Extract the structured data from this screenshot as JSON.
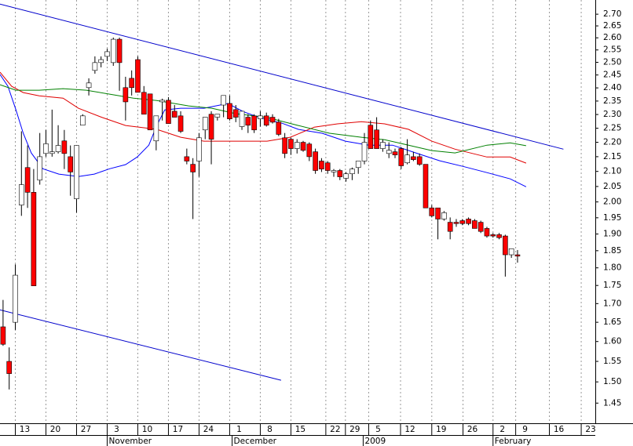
{
  "chart_data": {
    "type": "candlestick",
    "log_scale": true,
    "grid": "x",
    "up_color": "#ffffff",
    "down_color": "#ff0000",
    "xlim": [
      -0.5,
      96.7
    ],
    "ylim": [
      1.404,
      2.762
    ],
    "yticks": [
      1.45,
      {
        "value": 1.5,
        "label": "1.50"
      },
      1.55,
      {
        "value": 1.6,
        "label": "1.60"
      },
      1.65,
      {
        "value": 1.7,
        "label": "1.70"
      },
      1.75,
      {
        "value": 1.8,
        "label": "1.80"
      },
      1.85,
      {
        "value": 1.9,
        "label": "1.90"
      },
      1.95,
      {
        "value": 2,
        "label": "2.00"
      },
      2.05,
      {
        "value": 2.1,
        "label": "2.10"
      },
      2.15,
      {
        "value": 2.2,
        "label": "2.20"
      },
      2.25,
      {
        "value": 2.3,
        "label": "2.30"
      },
      2.35,
      {
        "value": 2.4,
        "label": "2.40"
      },
      2.45,
      {
        "value": 2.5,
        "label": "2.50"
      },
      2.55,
      {
        "value": 2.6,
        "label": "2.60"
      },
      2.65,
      {
        "value": 2.7,
        "label": "2.70"
      }
    ],
    "xticks": [
      {
        "value": 2,
        "label": "13"
      },
      {
        "value": 7,
        "label": "20"
      },
      {
        "value": 12,
        "label": "27"
      },
      {
        "value": 17,
        "label": "3"
      },
      {
        "value": 22,
        "label": "10"
      },
      {
        "value": 27,
        "label": "17"
      },
      {
        "value": 32,
        "label": "24"
      },
      {
        "value": 37,
        "label": "1"
      },
      {
        "value": 42,
        "label": "8"
      },
      {
        "value": 47,
        "label": "15"
      },
      {
        "value": 52.7,
        "label": "22"
      },
      {
        "value": 55.9,
        "label": "29"
      },
      {
        "value": 59.7,
        "label": "5"
      },
      {
        "value": 64.9,
        "label": "12"
      },
      {
        "value": 70,
        "label": "19"
      },
      {
        "value": 75.1,
        "label": "26"
      },
      {
        "value": 80,
        "label": "2"
      },
      {
        "value": 83.7,
        "label": "9"
      },
      {
        "value": 89.2,
        "label": "16"
      },
      {
        "value": 94.4,
        "label": "23"
      }
    ],
    "month_ticks": [
      {
        "value": 17,
        "label": "November"
      },
      {
        "value": 37.4,
        "label": "December"
      },
      {
        "value": 58.8,
        "label": "2009"
      },
      {
        "value": 80,
        "label": "February"
      }
    ],
    "candles": {
      "x": [
        0,
        1,
        2,
        3,
        4,
        5,
        6,
        7,
        8,
        9,
        10,
        11,
        12,
        13,
        14,
        15,
        16,
        17,
        18,
        19,
        20,
        21,
        22,
        23,
        24,
        25,
        26,
        27,
        28,
        29,
        30,
        31,
        32,
        33,
        34,
        35,
        36,
        37,
        38,
        39,
        40,
        41,
        42,
        43,
        44,
        45,
        46,
        47,
        48,
        49,
        50,
        51,
        52,
        53,
        54,
        55,
        56,
        57,
        58,
        59,
        60,
        61,
        62,
        63,
        64,
        65,
        66,
        67,
        68,
        69,
        70,
        71,
        72,
        73,
        74,
        75,
        76,
        77,
        78,
        79,
        80,
        81,
        82,
        83,
        84
      ],
      "open": [
        1.638,
        1.55,
        1.65,
        1.99,
        2.113,
        2.031,
        2.071,
        2.161,
        2.161,
        2.167,
        2.205,
        2.15,
        2.01,
        2.261,
        2.401,
        2.468,
        2.499,
        2.524,
        2.499,
        2.594,
        2.401,
        2.437,
        2.511,
        2.383,
        2.377,
        2.205,
        2.347,
        2.353,
        2.312,
        2.295,
        2.15,
        2.124,
        2.135,
        2.244,
        2.301,
        2.29,
        2.335,
        2.341,
        2.318,
        2.256,
        2.29,
        2.295,
        2.284,
        2.295,
        2.29,
        2.272,
        2.216,
        2.211,
        2.178,
        2.2,
        2.194,
        2.167,
        2.135,
        2.129,
        2.098,
        2.103,
        2.077,
        2.092,
        2.113,
        2.135,
        2.261,
        2.244,
        2.178,
        2.161,
        2.167,
        2.178,
        2.129,
        2.15,
        2.15,
        2.124,
        1.981,
        1.981,
        1.946,
        1.936,
        1.936,
        1.941,
        1.946,
        1.941,
        1.936,
        1.917,
        1.898,
        1.898,
        1.894,
        1.838,
        1.838
      ],
      "high": [
        1.71,
        1.585,
        1.81,
        2.239,
        2.189,
        2.108,
        2.233,
        2.244,
        2.318,
        2.261,
        2.244,
        2.189,
        2.189,
        2.301,
        2.437,
        2.524,
        2.524,
        2.555,
        2.601,
        2.601,
        2.443,
        2.468,
        2.524,
        2.407,
        2.377,
        2.295,
        2.359,
        2.365,
        2.335,
        2.312,
        2.178,
        2.145,
        2.233,
        2.29,
        2.312,
        2.301,
        2.365,
        2.371,
        2.335,
        2.312,
        2.301,
        2.301,
        2.312,
        2.307,
        2.301,
        2.284,
        2.233,
        2.216,
        2.211,
        2.205,
        2.2,
        2.178,
        2.145,
        2.135,
        2.108,
        2.108,
        2.098,
        2.113,
        2.135,
        2.233,
        2.278,
        2.29,
        2.211,
        2.2,
        2.178,
        2.183,
        2.211,
        2.167,
        2.161,
        2.124,
        1.99,
        1.981,
        1.971,
        1.951,
        1.946,
        1.946,
        1.951,
        1.946,
        1.941,
        1.922,
        1.903,
        1.903,
        1.898,
        1.852,
        1.852
      ],
      "low": [
        1.589,
        1.482,
        1.63,
        1.956,
        1.981,
        1.749,
        2.056,
        2.15,
        2.15,
        2.161,
        2.108,
        2.02,
        1.966,
        2.261,
        2.371,
        2.455,
        2.48,
        2.505,
        2.486,
        2.389,
        2.278,
        2.371,
        2.383,
        2.301,
        2.244,
        2.172,
        2.278,
        2.267,
        2.29,
        2.233,
        2.124,
        1.946,
        2.082,
        2.211,
        2.124,
        2.278,
        2.29,
        2.278,
        2.272,
        2.244,
        2.233,
        2.233,
        2.256,
        2.256,
        2.267,
        2.222,
        2.145,
        2.156,
        2.161,
        2.167,
        2.135,
        2.092,
        2.098,
        2.092,
        2.082,
        2.071,
        2.066,
        2.071,
        2.092,
        2.124,
        2.178,
        2.178,
        2.167,
        2.145,
        2.145,
        2.108,
        2.124,
        2.135,
        2.119,
        1.981,
        1.951,
        1.884,
        1.941,
        1.884,
        1.922,
        1.927,
        1.927,
        1.917,
        1.903,
        1.889,
        1.889,
        1.884,
        1.775,
        1.829,
        1.815
      ],
      "close": [
        1.593,
        1.52,
        1.779,
        2.056,
        2.031,
        1.749,
        2.15,
        2.195,
        2.167,
        2.189,
        2.161,
        2.098,
        2.189,
        2.295,
        2.419,
        2.499,
        2.511,
        2.543,
        2.594,
        2.499,
        2.347,
        2.401,
        2.383,
        2.301,
        2.244,
        2.295,
        2.353,
        2.267,
        2.29,
        2.239,
        2.135,
        2.098,
        2.216,
        2.29,
        2.211,
        2.301,
        2.371,
        2.284,
        2.29,
        2.312,
        2.261,
        2.244,
        2.295,
        2.261,
        2.272,
        2.228,
        2.161,
        2.178,
        2.2,
        2.172,
        2.15,
        2.103,
        2.108,
        2.103,
        2.103,
        2.082,
        2.092,
        2.108,
        2.135,
        2.2,
        2.178,
        2.178,
        2.2,
        2.172,
        2.156,
        2.119,
        2.156,
        2.14,
        2.124,
        1.981,
        1.956,
        1.946,
        1.966,
        1.908,
        1.932,
        1.932,
        1.932,
        1.917,
        1.908,
        1.894,
        1.894,
        1.889,
        1.838,
        1.856,
        1.834
      ]
    },
    "lines": [
      {
        "color": "#0000ff",
        "x": [
          -0.5,
          0.8,
          2.1,
          3.3,
          4.6,
          6.5,
          9.1,
          12.3,
          14.9,
          17.4,
          20,
          21.9,
          23.8,
          25.1,
          26.4,
          29,
          32.8,
          36.7,
          39.2,
          41.8,
          45.6,
          48.2,
          52.1,
          55.9,
          59.7,
          63.6,
          67.4,
          71.3,
          75.1,
          79,
          82.8,
          85.4
        ],
        "values": [
          2.452,
          2.406,
          2.317,
          2.232,
          2.163,
          2.109,
          2.091,
          2.083,
          2.091,
          2.109,
          2.123,
          2.149,
          2.19,
          2.26,
          2.317,
          2.323,
          2.323,
          2.341,
          2.311,
          2.289,
          2.268,
          2.246,
          2.232,
          2.204,
          2.19,
          2.19,
          2.163,
          2.136,
          2.117,
          2.096,
          2.075,
          2.049
        ]
      },
      {
        "color": "#e00000",
        "x": [
          -0.5,
          1.4,
          3.3,
          5.9,
          9.8,
          12.3,
          16.2,
          20,
          25.1,
          29,
          32.8,
          38,
          43.1,
          46.9,
          50.8,
          54.6,
          58.5,
          62.3,
          66.2,
          70,
          73.8,
          79,
          82.8,
          85.4
        ],
        "values": [
          2.461,
          2.406,
          2.382,
          2.37,
          2.361,
          2.323,
          2.289,
          2.26,
          2.246,
          2.218,
          2.204,
          2.204,
          2.204,
          2.218,
          2.254,
          2.266,
          2.274,
          2.266,
          2.246,
          2.204,
          2.176,
          2.149,
          2.149,
          2.128
        ]
      },
      {
        "color": "#008000",
        "x": [
          -0.5,
          2.1,
          5.9,
          9.8,
          13.6,
          17.4,
          21.3,
          25.1,
          30.3,
          34.1,
          38,
          43.1,
          48.2,
          53.3,
          58.5,
          62.3,
          66.2,
          70,
          73.8,
          79,
          82.8,
          85.4
        ],
        "values": [
          2.412,
          2.391,
          2.391,
          2.397,
          2.391,
          2.376,
          2.361,
          2.352,
          2.332,
          2.323,
          2.303,
          2.289,
          2.26,
          2.232,
          2.218,
          2.209,
          2.19,
          2.171,
          2.163,
          2.19,
          2.198,
          2.188
        ]
      },
      {
        "color": "#0000cc",
        "x": [
          -0.5,
          91.5
        ],
        "values": [
          2.744,
          2.176
        ]
      },
      {
        "color": "#0000cc",
        "x": [
          -0.5,
          45.4
        ],
        "values": [
          1.683,
          1.504
        ]
      }
    ]
  }
}
